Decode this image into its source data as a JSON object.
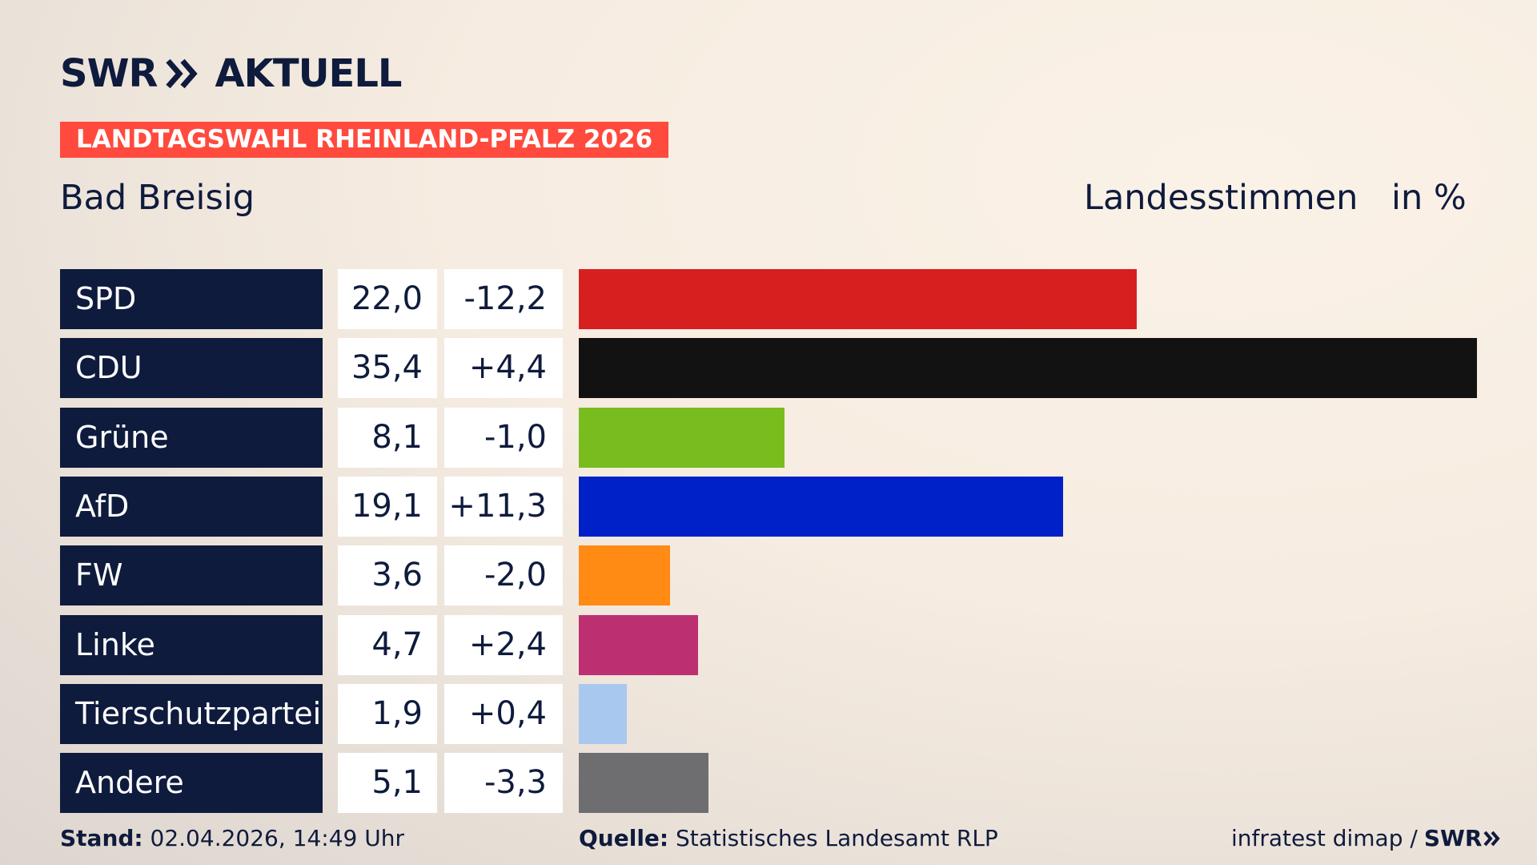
{
  "brand": {
    "logo_text": "SWR",
    "logo_suffix": "AKTUELL",
    "logo_icon": "double-chevron-icon"
  },
  "header": {
    "election": "LANDTAGSWAHL RHEINLAND-PFALZ 2026",
    "region": "Bad Breisig",
    "vote_type": "Landesstimmen",
    "unit": "in %"
  },
  "colors": {
    "badge": "#ff4a3d",
    "label_bg": "#0f1b3d"
  },
  "chart_data": {
    "type": "bar",
    "orientation": "horizontal",
    "categories": [
      "SPD",
      "CDU",
      "Grüne",
      "AfD",
      "FW",
      "Linke",
      "Tierschutzpartei",
      "Andere"
    ],
    "values": [
      22.0,
      35.4,
      8.1,
      19.1,
      3.6,
      4.7,
      1.9,
      5.1
    ],
    "value_labels": [
      "22,0",
      "35,4",
      "8,1",
      "19,1",
      "3,6",
      "4,7",
      "1,9",
      "5,1"
    ],
    "diff_labels": [
      "-12,2",
      "+4,4",
      "-1,0",
      "+11,3",
      "-2,0",
      "+2,4",
      "+0,4",
      "-3,3"
    ],
    "colors": [
      "#d81f20",
      "#121212",
      "#79bc1e",
      "#0020c8",
      "#ff8a14",
      "#bc3072",
      "#a9c8f0",
      "#6e6e70"
    ],
    "xlim": [
      0,
      35.4
    ],
    "grid": false
  },
  "footer": {
    "stand_label": "Stand:",
    "stand_value": "02.04.2026, 14:49 Uhr",
    "source_label": "Quelle:",
    "source_value": "Statistisches Landesamt RLP",
    "credit": "infratest dimap /",
    "credit_logo": "SWR"
  }
}
